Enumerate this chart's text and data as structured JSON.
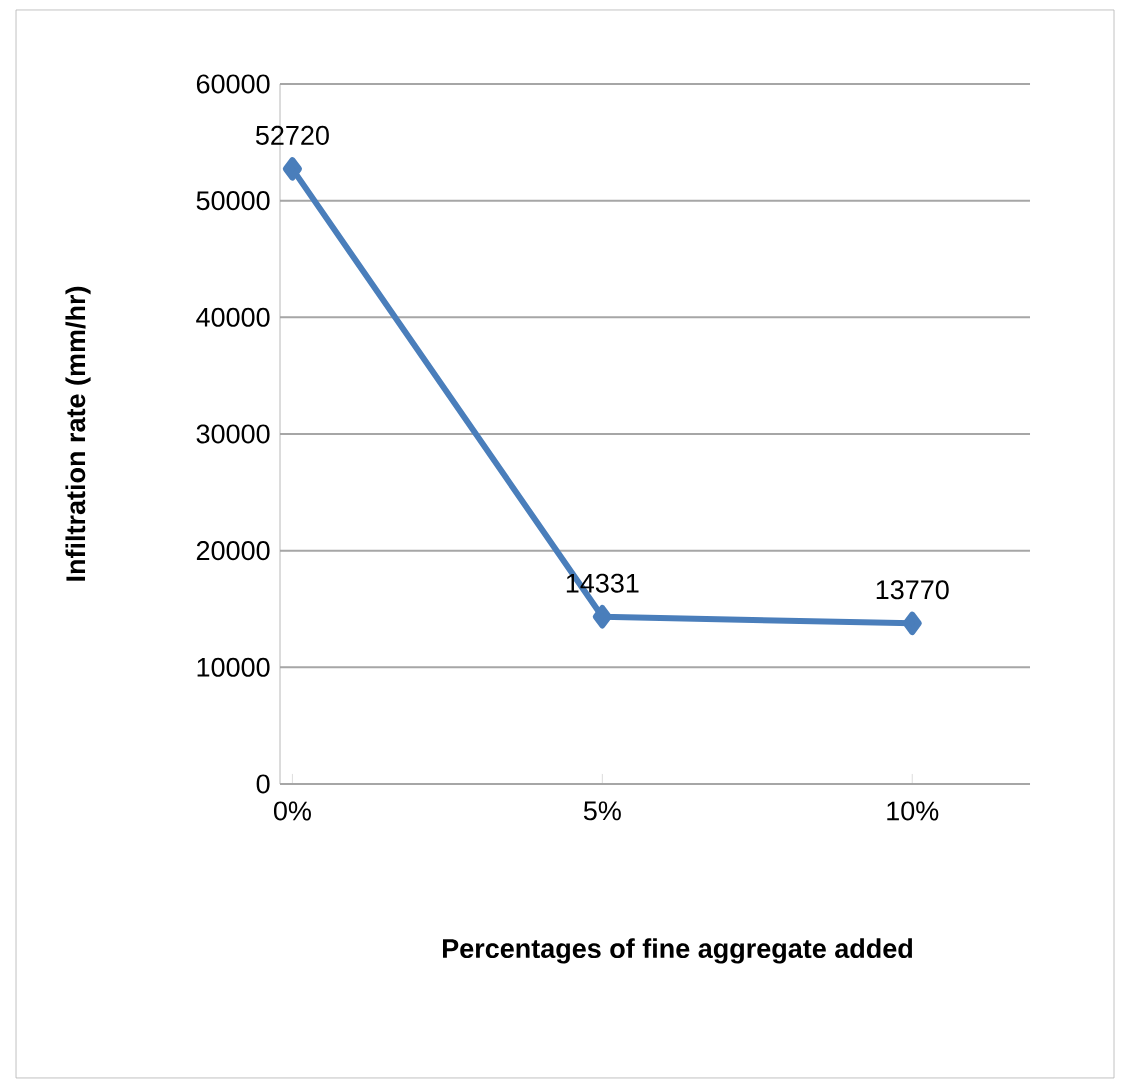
{
  "chart_data": {
    "type": "line",
    "xlabel": "Percentages of fine aggregate added",
    "ylabel": "Infiltration rate (mm/hr)",
    "categories": [
      "0%",
      "5%",
      "10%"
    ],
    "series": [
      {
        "color": "#4a7ebb",
        "values": [
          52720,
          14331,
          13770
        ]
      }
    ],
    "ylim": [
      0,
      60000
    ],
    "yticks": [
      0,
      10000,
      20000,
      30000,
      40000,
      50000,
      60000
    ],
    "grid": "y",
    "marker": "diamond",
    "line_style": "solid",
    "data_labels": true
  }
}
